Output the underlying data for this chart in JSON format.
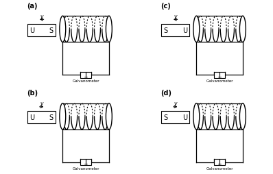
{
  "panels": [
    {
      "label": "(a)",
      "left_label": "U",
      "right_label": "S",
      "arrow_dir": "left",
      "col": 0,
      "row": 0
    },
    {
      "label": "(b)",
      "left_label": "U",
      "right_label": "S",
      "arrow_dir": "right",
      "col": 0,
      "row": 1
    },
    {
      "label": "(c)",
      "left_label": "S",
      "right_label": "U",
      "arrow_dir": "left",
      "col": 1,
      "row": 0
    },
    {
      "label": "(d)",
      "left_label": "S",
      "right_label": "U",
      "arrow_dir": "right",
      "col": 1,
      "row": 1
    }
  ],
  "bg_color": "#ffffff",
  "line_color": "#000000",
  "text_color": "#000000",
  "galvanometer_label": "Galvanometer",
  "coil_turns": 6,
  "figsize": [
    3.98,
    2.55
  ],
  "dpi": 100
}
